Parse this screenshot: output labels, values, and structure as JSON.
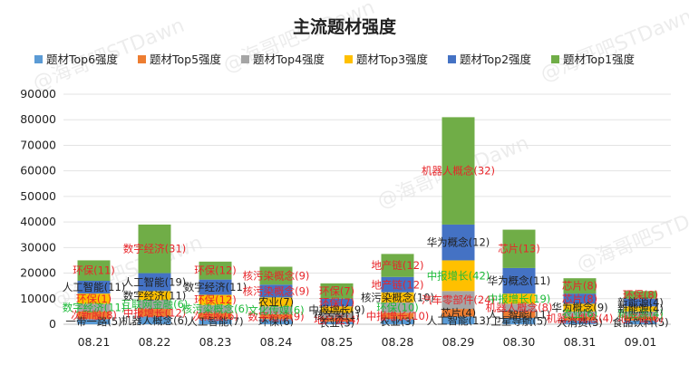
{
  "chart_data": {
    "type": "bar",
    "stacked": true,
    "title": "主流题材强度",
    "watermark": "@海哥吧STDawn",
    "ylim": [
      0,
      90000
    ],
    "yticks": [
      0,
      10000,
      20000,
      30000,
      40000,
      50000,
      60000,
      70000,
      80000,
      90000
    ],
    "grid": true,
    "legend_position": "top",
    "categories": [
      "08.21",
      "08.22",
      "08.23",
      "08.24",
      "08.25",
      "08.28",
      "08.29",
      "08.30",
      "08.31",
      "09.01"
    ],
    "legend": [
      {
        "name": "题材Top6强度",
        "color": "#5B9BD5"
      },
      {
        "name": "题材Top5强度",
        "color": "#ED7D31"
      },
      {
        "name": "题材Top4强度",
        "color": "#A5A5A5"
      },
      {
        "name": "题材Top3强度",
        "color": "#FFC000"
      },
      {
        "name": "题材Top2强度",
        "color": "#4472C4"
      },
      {
        "name": "题材Top1强度",
        "color": "#70AD47"
      }
    ],
    "series": [
      {
        "name": "题材Top6强度",
        "color": "#5B9BD5",
        "values": [
          2000,
          3000,
          2000,
          2000,
          1000,
          2000,
          3000,
          2500,
          1500,
          1500
        ],
        "labels": [
          "一带一路(5)",
          "机器人概念(6)",
          "人工智能(7)",
          "环保(6)",
          "农业(3)",
          "农业(3)",
          "人工智能(13)",
          "卫星导航(5)",
          "大消费(3)",
          "食品饮料(5)"
        ],
        "label_colors": [
          "#222222",
          "#222222",
          "#222222",
          "#222222",
          "#222222",
          "#222222",
          "#222222",
          "#222222",
          "#222222",
          "#222222"
        ]
      },
      {
        "name": "题材Top5强度",
        "color": "#ED7D31",
        "values": [
          3000,
          3000,
          2500,
          2000,
          1500,
          2500,
          3000,
          2500,
          1500,
          1500
        ],
        "labels": [
          "次新股(8)",
          "中报增长(12)",
          "次新股(6)",
          "数字经济(9)",
          "地产链(4)",
          "中报增长(10)",
          "芯片(4)",
          "人工智能(11)",
          "机器人概念(4)",
          "地产链(6)"
        ],
        "label_colors": [
          "#E8252A",
          "#E8252A",
          "#E8252A",
          "#E8252A",
          "#E8252A",
          "#E8252A",
          "#222222",
          "#222222",
          "#E8252A",
          "#E8252A"
        ]
      },
      {
        "name": "题材Top4强度",
        "color": "#A5A5A5",
        "values": [
          3000,
          3500,
          3000,
          3000,
          2000,
          4000,
          7000,
          3000,
          2000,
          2000
        ],
        "labels": [
          "数字经济(11)",
          "互联网金融(6)",
          "核污染概念(6)",
          "文化传媒(6)",
          "核污染(1)",
          "环保(10)",
          "汽车零部件(24)",
          "机器人概念(8)",
          "农业(6)",
          "新能源(4)"
        ],
        "label_colors": [
          "#1DBB3A",
          "#1DBB3A",
          "#1DBB3A",
          "#1DBB3A",
          "#222222",
          "#1DBB3A",
          "#E8252A",
          "#E8252A",
          "#1DBB3A",
          "#1DBB3A"
        ]
      },
      {
        "name": "题材Top3强度",
        "color": "#FFC000",
        "values": [
          4000,
          3500,
          4000,
          3500,
          2500,
          4000,
          12000,
          4000,
          3000,
          2000
        ],
        "labels": [
          "环保(1)",
          "数字经济(11)",
          "环保(12)",
          "农业(7)",
          "中报增长(9)",
          "核污染概念(10)",
          "中报增长(42)",
          "中报增长(19)",
          "华为概念(9)",
          "新能源(4)"
        ],
        "label_colors": [
          "#E8252A",
          "#222222",
          "#E8252A",
          "#222222",
          "#222222",
          "#222222",
          "#1DBB3A",
          "#1DBB3A",
          "#222222",
          "#222222"
        ]
      },
      {
        "name": "题材Top2强度",
        "color": "#4472C4",
        "values": [
          5000,
          7000,
          6000,
          5000,
          3000,
          6000,
          14000,
          10000,
          4000,
          3000
        ],
        "labels": [
          "人工智能(11)",
          "人工智能(19)",
          "数字经济(11)",
          "核污染概念(9)",
          "环保(7)",
          "地产链(12)",
          "华为概念(12)",
          "华为概念(11)",
          "芯片(8)",
          "新能源(4)"
        ],
        "label_colors": [
          "#222222",
          "#222222",
          "#222222",
          "#E8252A",
          "#E8252A",
          "#E8252A",
          "#222222",
          "#222222",
          "#E8252A",
          "#222222"
        ]
      },
      {
        "name": "题材Top1强度",
        "color": "#70AD47",
        "values": [
          8000,
          19000,
          7000,
          7000,
          6000,
          9000,
          42000,
          15000,
          6000,
          3000
        ],
        "labels": [
          "环保(11)",
          "数字经济(31)",
          "环保(12)",
          "核污染概念(9)",
          "环保(7)",
          "地产链(12)",
          "机器人概念(32)",
          "芯片(13)",
          "芯片(8)",
          "环保(8)"
        ],
        "label_colors": [
          "#E8252A",
          "#E8252A",
          "#E8252A",
          "#E8252A",
          "#E8252A",
          "#E8252A",
          "#E8252A",
          "#E8252A",
          "#E8252A",
          "#E8252A"
        ]
      }
    ]
  }
}
